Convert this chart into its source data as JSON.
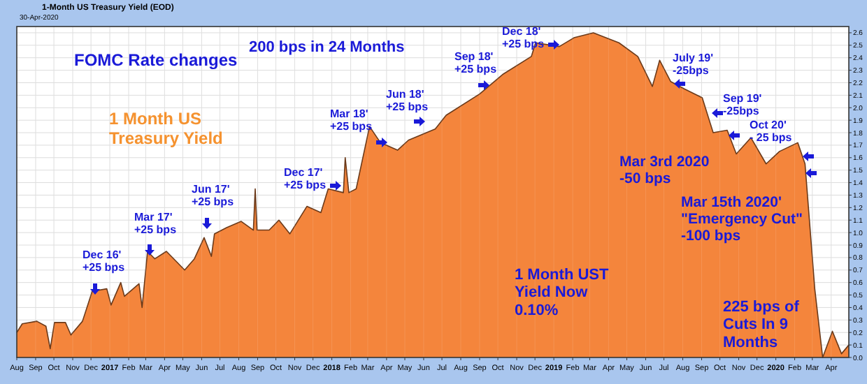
{
  "chart_data": {
    "type": "area",
    "title": "1-Month US Treasury Yield (EOD)",
    "subtitle": "30-Apr-2020",
    "x": [
      "2016-08-01",
      "2016-08-10",
      "2016-09-03",
      "2016-09-18",
      "2016-09-25",
      "2016-10-02",
      "2016-10-20",
      "2016-10-29",
      "2016-11-17",
      "2016-12-03",
      "2016-12-27",
      "2017-01-03",
      "2017-01-19",
      "2017-01-25",
      "2017-02-18",
      "2017-02-23",
      "2017-03-04",
      "2017-03-16",
      "2017-04-04",
      "2017-04-22",
      "2017-05-04",
      "2017-05-20",
      "2017-06-05",
      "2017-06-17",
      "2017-06-22",
      "2017-07-12",
      "2017-08-05",
      "2017-08-25",
      "2017-08-28",
      "2017-08-31",
      "2017-09-20",
      "2017-10-06",
      "2017-10-24",
      "2017-11-21",
      "2017-12-14",
      "2017-12-26",
      "2018-01-20",
      "2018-01-23",
      "2018-01-29",
      "2018-02-10",
      "2018-03-04",
      "2018-03-22",
      "2018-04-19",
      "2018-05-07",
      "2018-06-20",
      "2018-07-08",
      "2018-09-01",
      "2018-10-10",
      "2018-11-25",
      "2018-12-02",
      "2019-01-10",
      "2019-02-03",
      "2019-03-07",
      "2019-04-18",
      "2019-05-19",
      "2019-06-12",
      "2019-06-24",
      "2019-07-12",
      "2019-08-04",
      "2019-09-02",
      "2019-09-20",
      "2019-10-13",
      "2019-10-28",
      "2019-11-21",
      "2019-12-16",
      "2020-01-07",
      "2020-02-06",
      "2020-02-18",
      "2020-03-05",
      "2020-03-18",
      "2020-04-03",
      "2020-04-18",
      "2020-04-30"
    ],
    "series": [
      {
        "color": "#f4853c",
        "values": [
          0.2,
          0.27,
          0.29,
          0.25,
          0.07,
          0.28,
          0.28,
          0.18,
          0.29,
          0.53,
          0.55,
          0.42,
          0.6,
          0.49,
          0.59,
          0.4,
          0.85,
          0.79,
          0.85,
          0.76,
          0.7,
          0.79,
          0.96,
          0.81,
          0.99,
          1.04,
          1.09,
          1.02,
          1.35,
          1.02,
          1.02,
          1.1,
          0.99,
          1.21,
          1.16,
          1.35,
          1.32,
          1.6,
          1.32,
          1.35,
          1.85,
          1.72,
          1.66,
          1.74,
          1.83,
          1.94,
          2.11,
          2.27,
          2.41,
          2.52,
          2.49,
          2.56,
          2.6,
          2.52,
          2.41,
          2.17,
          2.38,
          2.21,
          2.15,
          2.08,
          1.8,
          1.82,
          1.63,
          1.76,
          1.55,
          1.65,
          1.72,
          1.55,
          0.55,
          0.0,
          0.21,
          0.03,
          0.1
        ]
      }
    ],
    "xlim": [
      "2016-08-01",
      "2020-04-30"
    ],
    "xticks": [
      {
        "value": "2016-08-01",
        "label": "Aug"
      },
      {
        "value": "2016-09-01",
        "label": "Sep"
      },
      {
        "value": "2016-10-01",
        "label": "Oct"
      },
      {
        "value": "2016-11-01",
        "label": "Nov"
      },
      {
        "value": "2016-12-01",
        "label": "Dec"
      },
      {
        "value": "2017-01-01",
        "label": "2017"
      },
      {
        "value": "2017-02-01",
        "label": "Feb"
      },
      {
        "value": "2017-03-01",
        "label": "Mar"
      },
      {
        "value": "2017-04-01",
        "label": "Apr"
      },
      {
        "value": "2017-05-01",
        "label": "May"
      },
      {
        "value": "2017-06-01",
        "label": "Jun"
      },
      {
        "value": "2017-07-01",
        "label": "Jul"
      },
      {
        "value": "2017-08-01",
        "label": "Aug"
      },
      {
        "value": "2017-09-01",
        "label": "Sep"
      },
      {
        "value": "2017-10-01",
        "label": "Oct"
      },
      {
        "value": "2017-11-01",
        "label": "Nov"
      },
      {
        "value": "2017-12-01",
        "label": "Dec"
      },
      {
        "value": "2018-01-01",
        "label": "2018"
      },
      {
        "value": "2018-02-01",
        "label": "Feb"
      },
      {
        "value": "2018-03-01",
        "label": "Mar"
      },
      {
        "value": "2018-04-01",
        "label": "Apr"
      },
      {
        "value": "2018-05-01",
        "label": "May"
      },
      {
        "value": "2018-06-01",
        "label": "Jun"
      },
      {
        "value": "2018-07-01",
        "label": "Jul"
      },
      {
        "value": "2018-08-01",
        "label": "Aug"
      },
      {
        "value": "2018-09-01",
        "label": "Sep"
      },
      {
        "value": "2018-10-01",
        "label": "Oct"
      },
      {
        "value": "2018-11-01",
        "label": "Nov"
      },
      {
        "value": "2018-12-01",
        "label": "Dec"
      },
      {
        "value": "2019-01-01",
        "label": "2019"
      },
      {
        "value": "2019-02-01",
        "label": "Feb"
      },
      {
        "value": "2019-03-01",
        "label": "Mar"
      },
      {
        "value": "2019-04-01",
        "label": "Apr"
      },
      {
        "value": "2019-05-01",
        "label": "May"
      },
      {
        "value": "2019-06-01",
        "label": "Jun"
      },
      {
        "value": "2019-07-01",
        "label": "Jul"
      },
      {
        "value": "2019-08-01",
        "label": "Aug"
      },
      {
        "value": "2019-09-01",
        "label": "Sep"
      },
      {
        "value": "2019-10-01",
        "label": "Oct"
      },
      {
        "value": "2019-11-01",
        "label": "Nov"
      },
      {
        "value": "2019-12-01",
        "label": "Dec"
      },
      {
        "value": "2020-01-01",
        "label": "2020"
      },
      {
        "value": "2020-02-01",
        "label": "Feb"
      },
      {
        "value": "2020-03-01",
        "label": "Mar"
      },
      {
        "value": "2020-04-01",
        "label": "Apr"
      }
    ],
    "ylim": [
      0,
      2.65
    ],
    "yticks": [
      {
        "value": 0,
        "label": "0.0"
      },
      {
        "value": 0.1,
        "label": "0.1"
      },
      {
        "value": 0.2,
        "label": "0.2"
      },
      {
        "value": 0.3,
        "label": "0.3"
      },
      {
        "value": 0.4,
        "label": "0.4"
      },
      {
        "value": 0.5,
        "label": "0.5"
      },
      {
        "value": 0.6,
        "label": "0.6"
      },
      {
        "value": 0.7,
        "label": "0.7"
      },
      {
        "value": 0.8,
        "label": "0.8"
      },
      {
        "value": 0.9,
        "label": "0.9"
      },
      {
        "value": 1,
        "label": "1.0"
      },
      {
        "value": 1.1,
        "label": "1.1"
      },
      {
        "value": 1.2,
        "label": "1.2"
      },
      {
        "value": 1.3,
        "label": "1.3"
      },
      {
        "value": 1.4,
        "label": "1.4"
      },
      {
        "value": 1.5,
        "label": "1.5"
      },
      {
        "value": 1.6,
        "label": "1.6"
      },
      {
        "value": 1.7,
        "label": "1.7"
      },
      {
        "value": 1.8,
        "label": "1.8"
      },
      {
        "value": 1.9,
        "label": "1.9"
      },
      {
        "value": 2,
        "label": "2.0"
      },
      {
        "value": 2.1,
        "label": "2.1"
      },
      {
        "value": 2.2,
        "label": "2.2"
      },
      {
        "value": 2.3,
        "label": "2.3"
      },
      {
        "value": 2.4,
        "label": "2.4"
      },
      {
        "value": 2.5,
        "label": "2.5"
      },
      {
        "value": 2.6,
        "label": "2.6"
      }
    ],
    "grid": true,
    "annotations": [
      "FOMC Rate changes",
      "200 bps in 24 Months",
      "1 Month US\nTreasury Yield",
      "Dec 16'\n+25 bps",
      "Mar 17'\n+25 bps",
      "Jun 17'\n+25 bps",
      "Dec 17'\n+25 bps",
      "Mar 18'\n+25 bps",
      "Jun 18'\n+25 bps",
      "Sep 18'\n+25 bps",
      "Dec 18'\n+25 bps",
      "July 19'\n-25bps",
      "Sep 19'\n-25bps",
      "Oct 20'\n- 25 bps",
      "Mar 3rd 2020\n-50 bps",
      "Mar 15th 2020'\n\"Emergency Cut\"\n-100 bps",
      "1 Month UST\nYield Now\n0.10%",
      "225 bps of\nCuts In 9\nMonths"
    ]
  }
}
